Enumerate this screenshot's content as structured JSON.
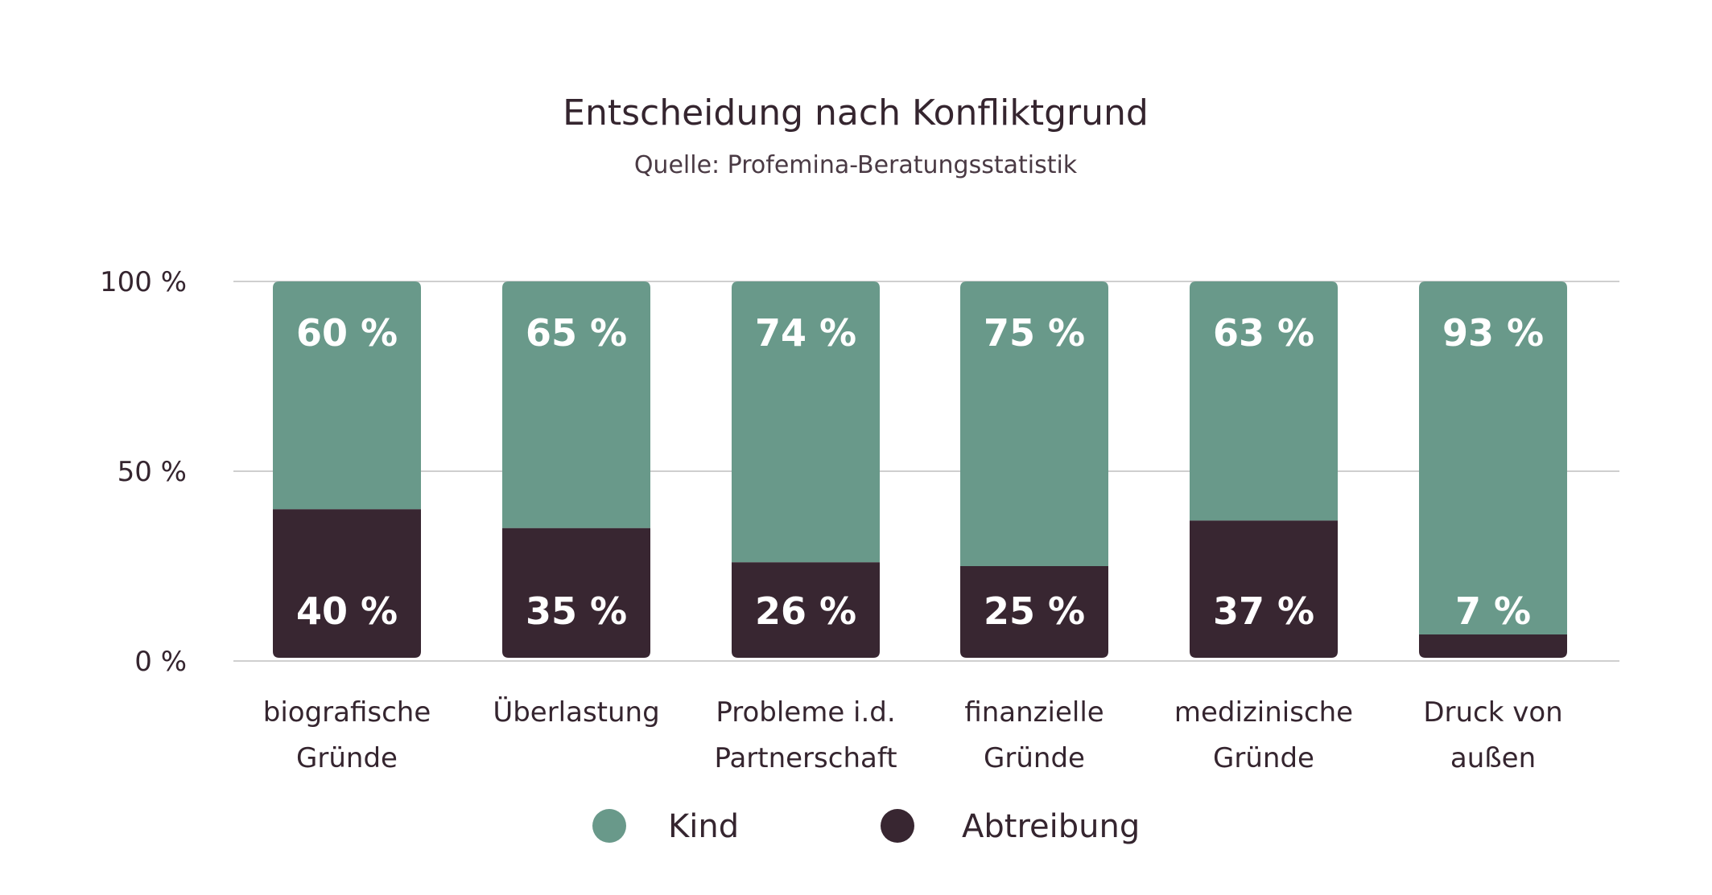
{
  "chart_data": {
    "type": "bar",
    "stacked": true,
    "title": "Entscheidung nach Konfliktgrund",
    "subtitle": "Quelle: Profemina-Beratungsstatistik",
    "categories": [
      [
        "biografische",
        "Gründe"
      ],
      [
        "Überlastung"
      ],
      [
        "Probleme i.d.",
        "Partnerschaft"
      ],
      [
        "finanzielle",
        "Gründe"
      ],
      [
        "medizinische",
        "Gründe"
      ],
      [
        "Druck von",
        "außen"
      ]
    ],
    "series": [
      {
        "name": "Abtreibung",
        "color": "#382631",
        "values": [
          40,
          35,
          26,
          25,
          37,
          7
        ],
        "labels": [
          "40 %",
          "35 %",
          "26 %",
          "25 %",
          "37 %",
          "7 %"
        ]
      },
      {
        "name": "Kind",
        "color": "#69998a",
        "values": [
          60,
          65,
          74,
          75,
          63,
          93
        ],
        "labels": [
          "60 %",
          "65 %",
          "74 %",
          "75 %",
          "63 %",
          "93 %"
        ]
      }
    ],
    "yticks": [
      {
        "value": 0,
        "label": "0 %"
      },
      {
        "value": 50,
        "label": "50 %"
      },
      {
        "value": 100,
        "label": "100 %"
      }
    ],
    "ylim": [
      0,
      100
    ],
    "grid": true,
    "legend": {
      "position": "bottom-center",
      "items": [
        {
          "name": "Kind",
          "color": "#69998a"
        },
        {
          "name": "Abtreibung",
          "color": "#382631"
        }
      ]
    }
  }
}
